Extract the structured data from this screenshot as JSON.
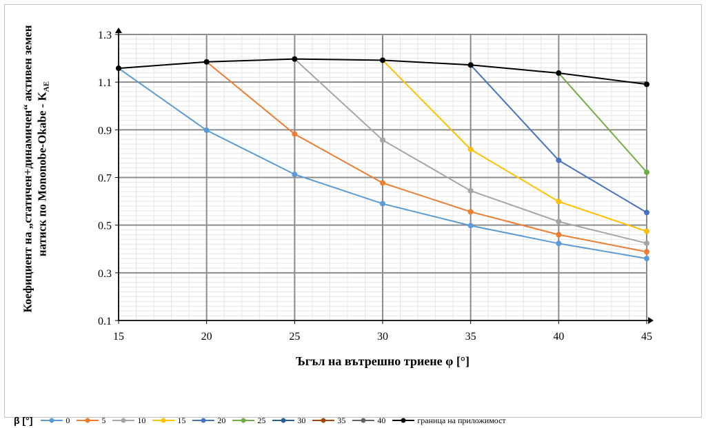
{
  "chart_data": {
    "type": "line",
    "xlabel": "Ъгъл на вътрешно триене φ [°]",
    "ylabel": "Коефициент на „статичен+динамичен“ активен земен натиск по Mononobe-Okabe - K",
    "ylabel_subscript": "AE",
    "x": [
      15,
      20,
      25,
      30,
      35,
      40,
      45
    ],
    "xlim": [
      15,
      45
    ],
    "ylim": [
      0.1,
      1.3
    ],
    "yticks": [
      "0.1",
      "0.3",
      "0.5",
      "0.7",
      "0.9",
      "1.1",
      "1.3"
    ],
    "xticks": [
      "15",
      "20",
      "25",
      "30",
      "35",
      "40",
      "45"
    ],
    "grid": true,
    "legend_title": "β [°]",
    "legend_position": "bottom",
    "series": [
      {
        "name": "0",
        "color": "#5b9bd5",
        "x": [
          15,
          20,
          25,
          30,
          35,
          40,
          45
        ],
        "values": [
          1.158,
          0.898,
          0.713,
          0.59,
          0.498,
          0.423,
          0.36
        ]
      },
      {
        "name": "5",
        "color": "#ed7d31",
        "x": [
          20,
          25,
          30,
          35,
          40,
          45
        ],
        "values": [
          1.185,
          0.882,
          0.677,
          0.556,
          0.46,
          0.388
        ]
      },
      {
        "name": "10",
        "color": "#a5a5a5",
        "x": [
          25,
          30,
          35,
          40,
          45
        ],
        "values": [
          1.197,
          0.857,
          0.644,
          0.515,
          0.424
        ]
      },
      {
        "name": "15",
        "color": "#ffc000",
        "x": [
          30,
          35,
          40,
          45
        ],
        "values": [
          1.192,
          0.818,
          0.599,
          0.474
        ]
      },
      {
        "name": "20",
        "color": "#4472c4",
        "x": [
          35,
          40,
          45
        ],
        "values": [
          1.172,
          0.772,
          0.553
        ]
      },
      {
        "name": "25",
        "color": "#70ad47",
        "x": [
          40,
          45
        ],
        "values": [
          1.138,
          0.722
        ]
      },
      {
        "name": "30",
        "color": "#255e91",
        "x": [
          45
        ],
        "values": [
          1.091
        ]
      },
      {
        "name": "35",
        "color": "#9e480e",
        "x": [],
        "values": []
      },
      {
        "name": "40",
        "color": "#636363",
        "x": [],
        "values": []
      },
      {
        "name": "граница на приложимост",
        "color": "#000000",
        "x": [
          15,
          20,
          25,
          30,
          35,
          40,
          45
        ],
        "values": [
          1.158,
          1.185,
          1.197,
          1.192,
          1.172,
          1.138,
          1.091
        ]
      }
    ]
  }
}
